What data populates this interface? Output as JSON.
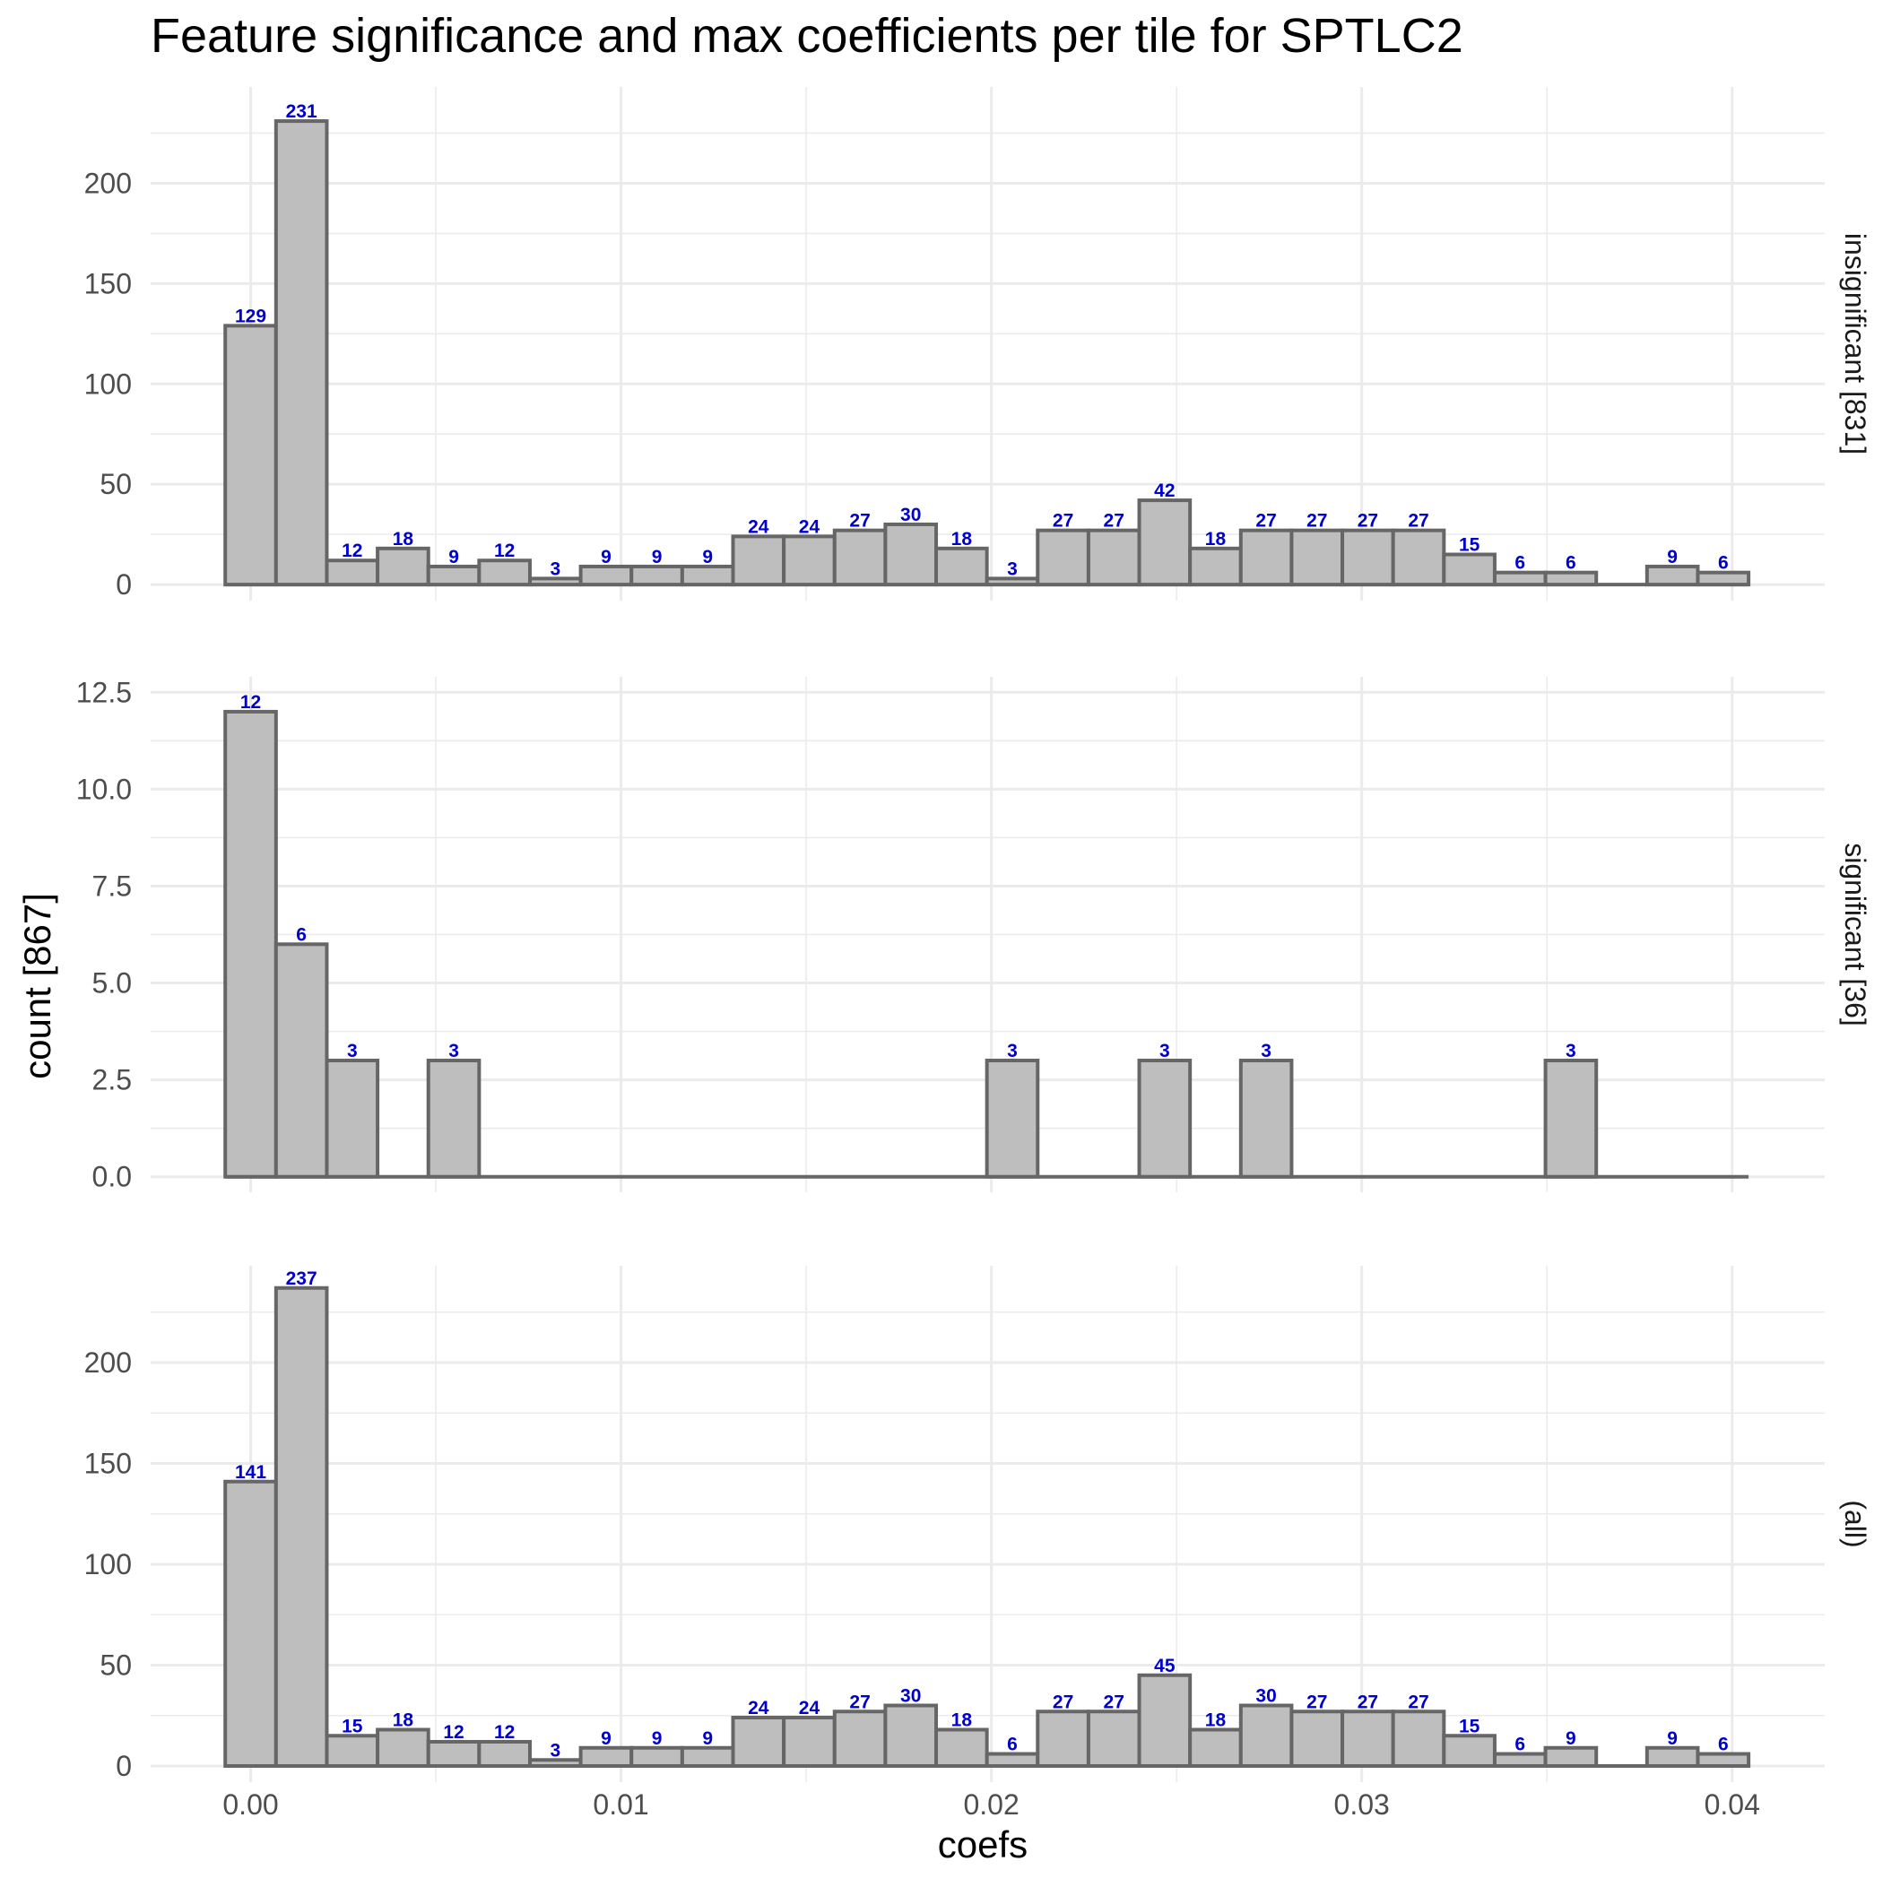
{
  "chart_data": {
    "type": "bar",
    "title": "Feature significance and max coefficients per tile for SPTLC2",
    "xlabel": "coefs",
    "ylabel": "count [867]",
    "xlim": [
      -0.0027,
      0.0425
    ],
    "x_ticks": [
      0.0,
      0.01,
      0.02,
      0.03,
      0.04
    ],
    "x_tick_labels": [
      "0.00",
      "0.01",
      "0.02",
      "0.03",
      "0.04"
    ],
    "bin_width": 0.001371,
    "bin_centers": [
      0.0,
      0.001371,
      0.002742,
      0.004113,
      0.005484,
      0.006855,
      0.008226,
      0.009597,
      0.010968,
      0.012339,
      0.01371,
      0.015081,
      0.016452,
      0.017823,
      0.019194,
      0.020565,
      0.021936,
      0.023307,
      0.024678,
      0.026049,
      0.02742,
      0.028791,
      0.030162,
      0.031533,
      0.032904,
      0.034275,
      0.035646,
      0.037017,
      0.038388,
      0.039759
    ],
    "grid": true,
    "panels": [
      {
        "strip_label": "insignificant [831]",
        "ylim": [
          -8,
          248
        ],
        "y_ticks": [
          0,
          50,
          100,
          150,
          200
        ],
        "y_tick_labels": [
          "0",
          "50",
          "100",
          "150",
          "200"
        ],
        "values": [
          129,
          231,
          12,
          18,
          9,
          12,
          3,
          9,
          9,
          9,
          24,
          24,
          27,
          30,
          18,
          3,
          27,
          27,
          42,
          18,
          27,
          27,
          27,
          27,
          15,
          6,
          6,
          0,
          9,
          6
        ],
        "labels": [
          "129",
          "231",
          "12",
          "18",
          "9",
          "12",
          "3",
          "9",
          "9",
          "9",
          "24",
          "24",
          "27",
          "30",
          "18",
          "3",
          "27",
          "27",
          "42",
          "18",
          "27",
          "27",
          "27",
          "27",
          "15",
          "6",
          "6",
          "",
          "9",
          "6"
        ]
      },
      {
        "strip_label": "significant [36]",
        "ylim": [
          -0.4,
          12.9
        ],
        "y_ticks": [
          0.0,
          2.5,
          5.0,
          7.5,
          10.0,
          12.5
        ],
        "y_tick_labels": [
          "0.0",
          "2.5",
          "5.0",
          "7.5",
          "10.0",
          "12.5"
        ],
        "values": [
          12,
          6,
          3,
          0,
          3,
          0,
          0,
          0,
          0,
          0,
          0,
          0,
          0,
          0,
          0,
          3,
          0,
          0,
          3,
          0,
          3,
          0,
          0,
          0,
          0,
          0,
          3,
          0,
          0,
          0
        ],
        "labels": [
          "12",
          "6",
          "3",
          "",
          "3",
          "",
          "",
          "",
          "",
          "",
          "",
          "",
          "",
          "",
          "",
          "3",
          "",
          "",
          "3",
          "",
          "3",
          "",
          "",
          "",
          "",
          "",
          "3",
          "",
          "",
          ""
        ]
      },
      {
        "strip_label": "(all)",
        "ylim": [
          -8,
          248
        ],
        "y_ticks": [
          0,
          50,
          100,
          150,
          200
        ],
        "y_tick_labels": [
          "0",
          "50",
          "100",
          "150",
          "200"
        ],
        "values": [
          141,
          237,
          15,
          18,
          12,
          12,
          3,
          9,
          9,
          9,
          24,
          24,
          27,
          30,
          18,
          6,
          27,
          27,
          45,
          18,
          30,
          27,
          27,
          27,
          15,
          6,
          9,
          0,
          9,
          6
        ],
        "labels": [
          "141",
          "237",
          "15",
          "18",
          "12",
          "12",
          "3",
          "9",
          "9",
          "9",
          "24",
          "24",
          "27",
          "30",
          "18",
          "6",
          "27",
          "27",
          "45",
          "18",
          "30",
          "27",
          "27",
          "27",
          "15",
          "6",
          "9",
          "",
          "9",
          "6"
        ]
      }
    ]
  }
}
